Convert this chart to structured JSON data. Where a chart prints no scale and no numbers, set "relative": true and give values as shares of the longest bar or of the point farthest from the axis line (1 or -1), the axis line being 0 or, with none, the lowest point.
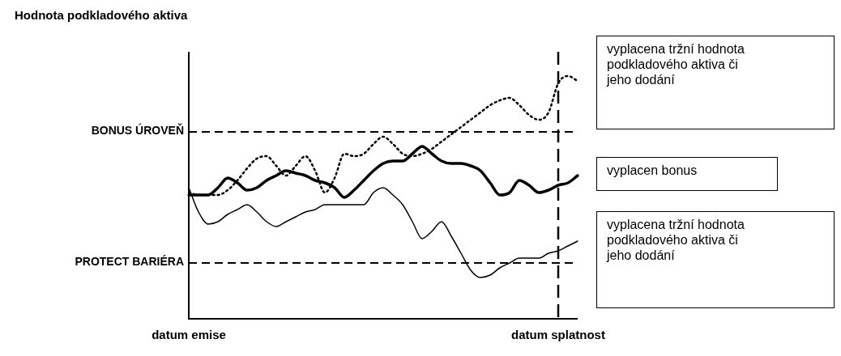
{
  "chart_data": {
    "type": "line",
    "title": "Hodnota podkladového aktiva",
    "relative": true,
    "legend": false,
    "grid": false,
    "marker": "none",
    "categories": [
      "datum emise",
      null,
      null,
      null,
      null,
      null,
      null,
      null,
      null,
      null,
      null,
      null,
      null,
      null,
      null,
      null,
      null,
      null,
      null,
      null,
      null,
      null,
      null,
      null,
      null,
      null,
      null,
      null,
      null,
      null,
      null,
      null,
      null,
      null,
      null,
      null,
      null,
      null,
      "datum splatnost",
      null,
      null
    ],
    "series": [
      {
        "color": "#000000",
        "line_style": "solid",
        "values": [
          0.54,
          0.44,
          0.39,
          0.4,
          0.43,
          0.45,
          0.47,
          0.44,
          0.4,
          0.38,
          0.4,
          0.42,
          0.44,
          0.45,
          0.47,
          0.47,
          0.47,
          0.47,
          0.47,
          0.52,
          0.54,
          0.51,
          0.47,
          0.4,
          0.33,
          0.36,
          0.4,
          0.34,
          0.27,
          0.2,
          0.17,
          0.18,
          0.21,
          0.23,
          0.25,
          0.25,
          0.25,
          0.27,
          0.28,
          0.3,
          0.32
        ]
      },
      {
        "color": "#000000",
        "line_style": "solid",
        "values": [
          0.51,
          0.51,
          0.51,
          0.54,
          0.58,
          0.56,
          0.53,
          0.54,
          0.57,
          0.59,
          0.61,
          0.6,
          0.59,
          0.57,
          0.56,
          0.54,
          0.5,
          0.53,
          0.57,
          0.61,
          0.64,
          0.65,
          0.65,
          0.68,
          0.71,
          0.68,
          0.65,
          0.64,
          0.64,
          0.63,
          0.61,
          0.56,
          0.51,
          0.52,
          0.57,
          0.55,
          0.52,
          0.53,
          0.55,
          0.56,
          0.59
        ]
      },
      {
        "color": "#000000",
        "line_style": "dotted",
        "values": [
          0.52,
          0.51,
          0.51,
          0.51,
          0.53,
          0.57,
          0.62,
          0.66,
          0.67,
          0.63,
          0.59,
          0.63,
          0.67,
          0.61,
          0.52,
          0.58,
          0.68,
          0.67,
          0.68,
          0.72,
          0.75,
          0.72,
          0.68,
          0.67,
          0.68,
          0.7,
          0.73,
          0.76,
          0.79,
          0.82,
          0.85,
          0.88,
          0.9,
          0.91,
          0.88,
          0.84,
          0.82,
          0.85,
          0.97,
          1.0,
          0.98
        ]
      }
    ],
    "ref_lines": [
      {
        "axis": "y",
        "value": 0.77,
        "label": "BONUS ÚROVEŇ",
        "color": "#000000",
        "line_style": "dashed"
      },
      {
        "axis": "y",
        "value": 0.23,
        "label": "PROTECT BARIÉRA",
        "color": "#000000",
        "line_style": "dashed"
      },
      {
        "axis": "x",
        "value": "datum splatnost",
        "color": "#000000",
        "line_style": "dashed"
      }
    ],
    "annotations": [
      "vyplacena tržní hodnota podkladového aktiva či jeho dodání",
      "vyplacen bonus",
      "vyplacena tržní hodnota podkladového aktiva či jeho dodání"
    ]
  }
}
